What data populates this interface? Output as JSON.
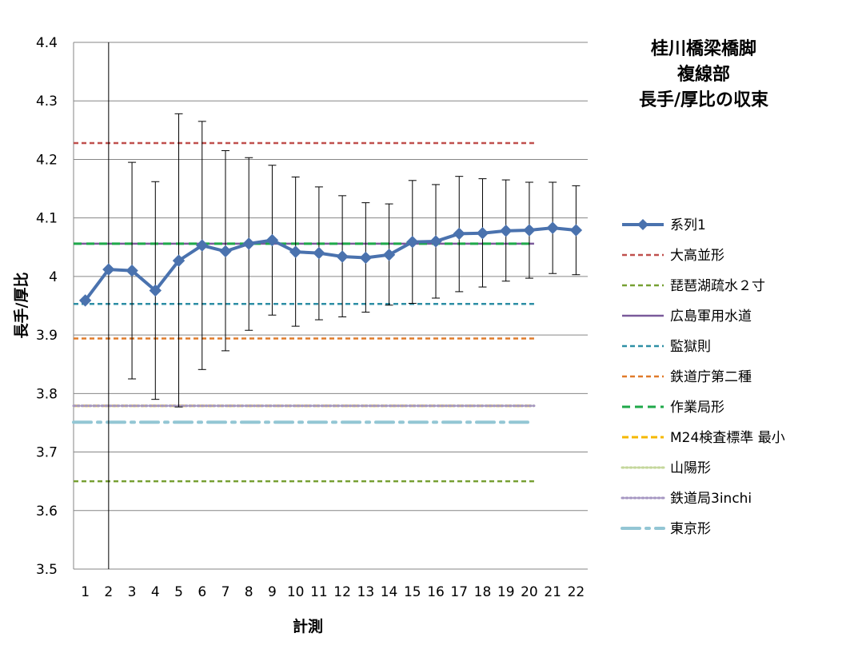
{
  "chart_data": {
    "type": "line",
    "title_lines": [
      "桂川橋梁橋脚",
      "複線部",
      "長手/厚比の収束"
    ],
    "xlabel": "計測",
    "ylabel": "長手/厚比",
    "ylim": [
      3.5,
      4.4
    ],
    "yticks": [
      3.5,
      3.6,
      3.7,
      3.8,
      3.9,
      4.0,
      4.1,
      4.2,
      4.3,
      4.4
    ],
    "ytick_labels": [
      "3.5",
      "3.6",
      "3.7",
      "3.8",
      "3.9",
      "4",
      "4.1",
      "4.2",
      "4.3",
      "4.4"
    ],
    "categories": [
      "1",
      "2",
      "3",
      "4",
      "5",
      "6",
      "7",
      "8",
      "9",
      "10",
      "11",
      "12",
      "13",
      "14",
      "15",
      "16",
      "17",
      "18",
      "19",
      "20",
      "21",
      "22"
    ],
    "grid": true,
    "legend_position": "right",
    "series": [
      {
        "name": "系列1",
        "kind": "main",
        "color": "#4a72ae",
        "values": [
          3.959,
          4.012,
          4.01,
          3.976,
          4.027,
          4.053,
          4.043,
          4.056,
          4.062,
          4.042,
          4.04,
          4.034,
          4.032,
          4.037,
          4.059,
          4.06,
          4.073,
          4.074,
          4.078,
          4.079,
          4.083,
          4.079
        ],
        "error_high": [
          null,
          4.4,
          4.195,
          4.162,
          4.278,
          4.265,
          4.215,
          4.203,
          4.19,
          4.17,
          4.153,
          4.138,
          4.126,
          4.124,
          4.164,
          4.157,
          4.171,
          4.167,
          4.165,
          4.161,
          4.161,
          4.155
        ],
        "error_low": [
          null,
          3.5,
          3.825,
          3.79,
          3.777,
          3.841,
          3.873,
          3.908,
          3.934,
          3.915,
          3.926,
          3.931,
          3.939,
          3.951,
          3.954,
          3.963,
          3.974,
          3.982,
          3.992,
          3.997,
          4.005,
          4.003
        ]
      },
      {
        "name": "大高並形",
        "kind": "ref",
        "value": 4.228,
        "color": "#c0504d",
        "dash": "6,4",
        "width": 2.5
      },
      {
        "name": "琵琶湖疏水２寸",
        "kind": "ref",
        "value": 3.65,
        "color": "#77a033",
        "dash": "6,4",
        "width": 2.5
      },
      {
        "name": "広島軍用水道",
        "kind": "ref",
        "value": 4.056,
        "color": "#7a5a9a",
        "dash": "",
        "width": 2.5
      },
      {
        "name": "監獄則",
        "kind": "ref",
        "value": 3.953,
        "color": "#2e8fa5",
        "dash": "6,4",
        "width": 2.5
      },
      {
        "name": "鉄道庁第二種",
        "kind": "ref",
        "value": 3.894,
        "color": "#e07b2a",
        "dash": "6,4",
        "width": 2.5
      },
      {
        "name": "作業局形",
        "kind": "ref",
        "value": 4.056,
        "color": "#1fa84a",
        "dash": "10,6",
        "width": 3
      },
      {
        "name": "M24検査標準 最小",
        "kind": "ref",
        "value": 3.779,
        "color": "#f5b800",
        "dash": "8,4",
        "width": 3
      },
      {
        "name": "山陽形",
        "kind": "ref",
        "value": 3.779,
        "color": "#c4d79b",
        "dash": "2,3",
        "width": 3
      },
      {
        "name": "鉄道局3inchi",
        "kind": "ref",
        "value": 3.779,
        "color": "#a697c2",
        "dash": "2,3",
        "width": 3
      },
      {
        "name": "東京形",
        "kind": "ref",
        "value": 3.751,
        "color": "#93c6d4",
        "dash": "22,8,4,8",
        "width": 4
      }
    ]
  }
}
